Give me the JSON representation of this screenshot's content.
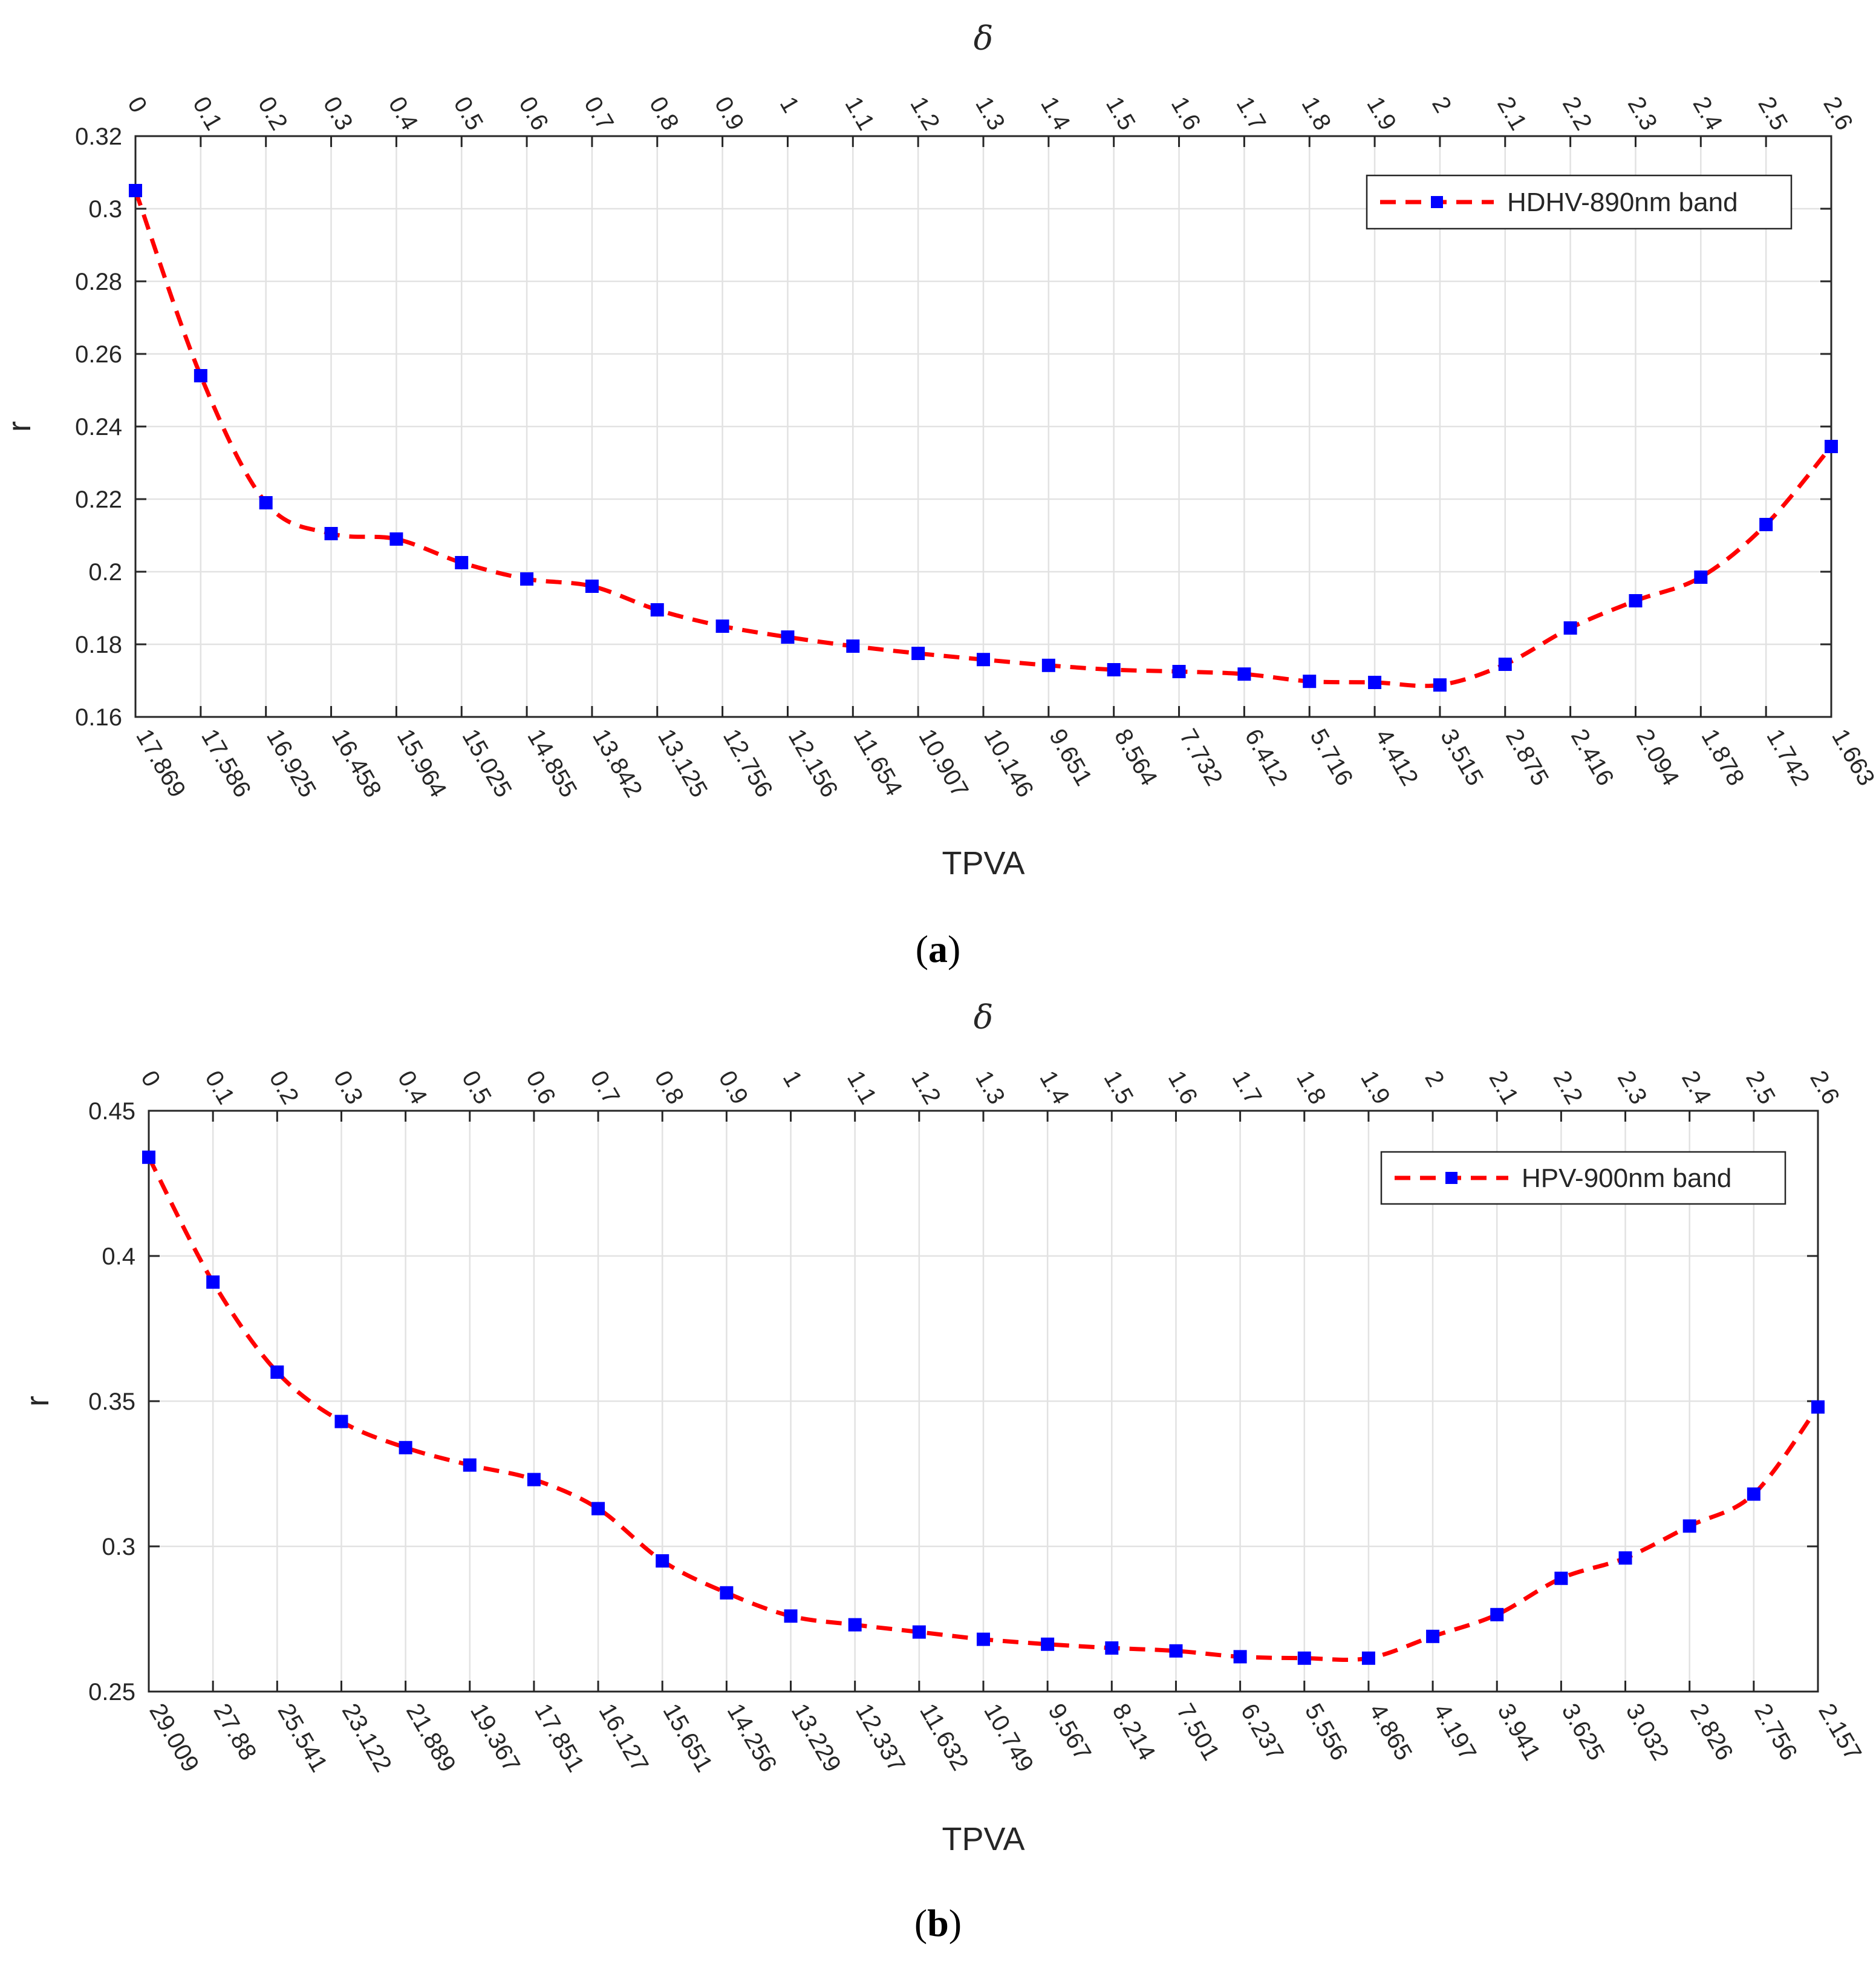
{
  "chart_data": [
    {
      "type": "line",
      "panel": "a",
      "caption_letter": "a",
      "xlabel": "TPVA",
      "ylabel": "r",
      "top_xlabel": "δ",
      "ylim": [
        0.16,
        0.32
      ],
      "yticks": [
        "0.16",
        "0.18",
        "0.2",
        "0.22",
        "0.24",
        "0.26",
        "0.28",
        "0.3",
        "0.32"
      ],
      "tpva_labels": [
        "17.869",
        "17.586",
        "16.925",
        "16.458",
        "15.964",
        "15.025",
        "14.855",
        "13.842",
        "13.125",
        "12.756",
        "12.156",
        "11.654",
        "10.907",
        "10.146",
        "9.651",
        "8.564",
        "7.732",
        "6.412",
        "5.716",
        "4.412",
        "3.515",
        "2.875",
        "2.416",
        "2.094",
        "1.878",
        "1.742",
        "1.663"
      ],
      "delta_labels": [
        "0",
        "0.1",
        "0.2",
        "0.3",
        "0.4",
        "0.5",
        "0.6",
        "0.7",
        "0.8",
        "0.9",
        "1",
        "1.1",
        "1.2",
        "1.3",
        "1.4",
        "1.5",
        "1.6",
        "1.7",
        "1.8",
        "1.9",
        "2",
        "2.1",
        "2.2",
        "2.3",
        "2.4",
        "2.5",
        "2.6"
      ],
      "grid": true,
      "legend_position": "top-right",
      "series": [
        {
          "name": "HDHV-890nm band",
          "line_color": "#ff0000",
          "marker_color": "#0000ff",
          "values": [
            0.305,
            0.254,
            0.219,
            0.2105,
            0.209,
            0.2025,
            0.198,
            0.196,
            0.1895,
            0.185,
            0.182,
            0.1795,
            0.1775,
            0.1758,
            0.1742,
            0.173,
            0.1725,
            0.1718,
            0.1698,
            0.1695,
            0.1688,
            0.1745,
            0.1845,
            0.192,
            0.1985,
            0.213,
            0.2345
          ]
        }
      ]
    },
    {
      "type": "line",
      "panel": "b",
      "caption_letter": "b",
      "xlabel": "TPVA",
      "ylabel": "r",
      "top_xlabel": "δ",
      "ylim": [
        0.25,
        0.45
      ],
      "yticks": [
        "0.25",
        "0.3",
        "0.35",
        "0.4",
        "0.45"
      ],
      "tpva_labels": [
        "29.009",
        "27.88",
        "25.541",
        "23.122",
        "21.889",
        "19.367",
        "17.851",
        "16.127",
        "15.651",
        "14.256",
        "13.229",
        "12.337",
        "11.632",
        "10.749",
        "9.567",
        "8.214",
        "7.501",
        "6.237",
        "5.556",
        "4.865",
        "4.197",
        "3.941",
        "3.625",
        "3.032",
        "2.826",
        "2.756",
        "2.157"
      ],
      "delta_labels": [
        "0",
        "0.1",
        "0.2",
        "0.3",
        "0.4",
        "0.5",
        "0.6",
        "0.7",
        "0.8",
        "0.9",
        "1",
        "1.1",
        "1.2",
        "1.3",
        "1.4",
        "1.5",
        "1.6",
        "1.7",
        "1.8",
        "1.9",
        "2",
        "2.1",
        "2.2",
        "2.3",
        "2.4",
        "2.5",
        "2.6"
      ],
      "grid": true,
      "legend_position": "top-right",
      "series": [
        {
          "name": "HPV-900nm band",
          "line_color": "#ff0000",
          "marker_color": "#0000ff",
          "values": [
            0.434,
            0.391,
            0.36,
            0.343,
            0.334,
            0.328,
            0.323,
            0.313,
            0.295,
            0.284,
            0.276,
            0.273,
            0.2705,
            0.268,
            0.2663,
            0.265,
            0.264,
            0.262,
            0.2615,
            0.2615,
            0.269,
            0.2765,
            0.289,
            0.296,
            0.307,
            0.318,
            0.348
          ]
        }
      ]
    }
  ]
}
